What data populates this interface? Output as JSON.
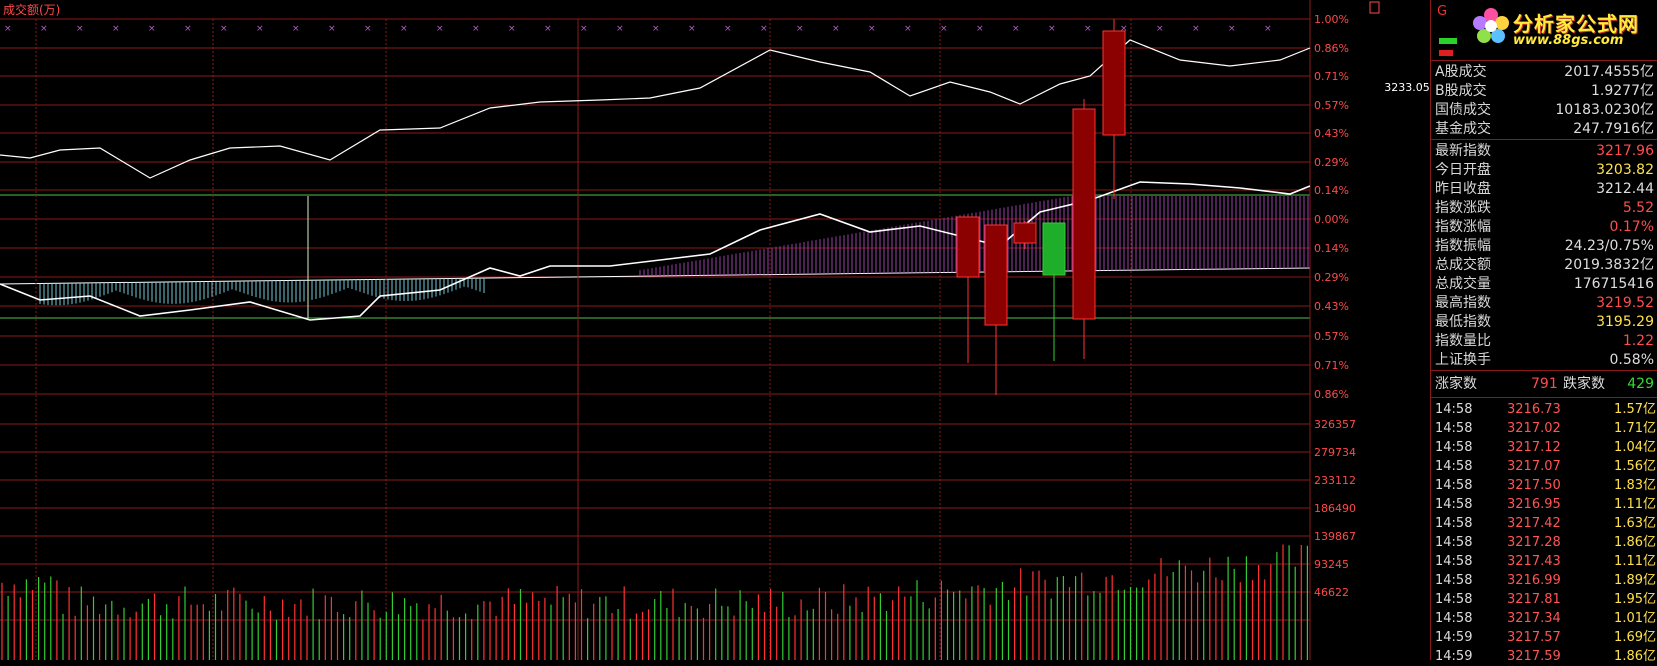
{
  "chart": {
    "title": "成交额(万)",
    "top_axis_ticks": [
      "1.00%",
      "0.86%",
      "0.71%",
      "0.57%",
      "0.43%",
      "0.29%",
      "0.14%",
      "0.00%",
      "0.14%",
      "0.29%",
      "0.43%",
      "0.57%",
      "0.71%",
      "0.86%"
    ],
    "price_badge": "3233.05",
    "volume_axis_ticks": [
      "326357",
      "279734",
      "233112",
      "186490",
      "139867",
      "93245",
      "46622"
    ],
    "colors": {
      "grid": "#8b1a1a",
      "up": "#ff3333",
      "down": "#33cc33",
      "line": "#ffffff",
      "axis_text": "#ff4a4a",
      "candle_up_fill": "#8b0000",
      "candle_down_fill": "#1fae2a"
    }
  },
  "chart_data": {
    "type": "line",
    "title": "成交额(万)",
    "price_axis_percent": [
      1.0,
      0.86,
      0.71,
      0.57,
      0.43,
      0.29,
      0.14,
      0.0,
      -0.14,
      -0.29,
      -0.43,
      -0.57,
      -0.71,
      -0.86
    ],
    "volume_axis": [
      326357,
      279734,
      233112,
      186490,
      139867,
      93245,
      46622
    ],
    "candles": [
      {
        "open": -0.29,
        "close": 0.01,
        "high": 0.02,
        "low": -0.72,
        "dir": "up"
      },
      {
        "open": -0.53,
        "close": -0.03,
        "high": -0.02,
        "low": -0.88,
        "dir": "up"
      },
      {
        "open": -0.12,
        "close": -0.02,
        "high": -0.01,
        "low": -0.15,
        "dir": "up"
      },
      {
        "open": -0.02,
        "close": -0.28,
        "high": -0.02,
        "low": -0.71,
        "dir": "down"
      },
      {
        "open": -0.5,
        "close": 0.55,
        "high": 0.6,
        "low": -0.7,
        "dir": "up"
      },
      {
        "open": 0.42,
        "close": 0.94,
        "high": 1.0,
        "low": 0.1,
        "dir": "up"
      }
    ]
  },
  "panel": {
    "g_letter": "G",
    "logo_title": "分析家公式网",
    "logo_url": "www.88gs.com",
    "stats_top": [
      {
        "label": "A股成交",
        "value": "2017.4555亿",
        "color": "#dddddd"
      },
      {
        "label": "B股成交",
        "value": "1.9277亿",
        "color": "#dddddd"
      },
      {
        "label": "国债成交",
        "value": "10183.0230亿",
        "color": "#dddddd"
      },
      {
        "label": "基金成交",
        "value": "247.7916亿",
        "color": "#dddddd"
      }
    ],
    "stats": [
      {
        "label": "最新指数",
        "value": "3217.96",
        "color": "#ff4d4d"
      },
      {
        "label": "今日开盘",
        "value": "3203.82",
        "color": "#ffe14d"
      },
      {
        "label": "昨日收盘",
        "value": "3212.44",
        "color": "#dddddd"
      },
      {
        "label": "指数涨跌",
        "value": "5.52",
        "color": "#ff4d4d"
      },
      {
        "label": "指数涨幅",
        "value": "0.17%",
        "color": "#ff4d4d"
      },
      {
        "label": "指数振幅",
        "value": "24.23/0.75%",
        "color": "#dddddd"
      },
      {
        "label": "总成交额",
        "value": "2019.3832亿",
        "color": "#dddddd"
      },
      {
        "label": "总成交量",
        "value": "176715416",
        "color": "#dddddd"
      },
      {
        "label": "最高指数",
        "value": "3219.52",
        "color": "#ff4d4d"
      },
      {
        "label": "最低指数",
        "value": "3195.29",
        "color": "#ffe14d"
      },
      {
        "label": "指数量比",
        "value": "1.22",
        "color": "#ff4d4d"
      },
      {
        "label": "上证换手",
        "value": "0.58%",
        "color": "#dddddd"
      }
    ],
    "updown": {
      "up_label": "涨家数",
      "up_count": "791",
      "down_label": "跌家数",
      "down_count": "429"
    },
    "trades": [
      {
        "time": "14:58",
        "price": "3216.73",
        "amount": "1.57亿"
      },
      {
        "time": "14:58",
        "price": "3217.02",
        "amount": "1.71亿"
      },
      {
        "time": "14:58",
        "price": "3217.12",
        "amount": "1.04亿"
      },
      {
        "time": "14:58",
        "price": "3217.07",
        "amount": "1.56亿"
      },
      {
        "time": "14:58",
        "price": "3217.50",
        "amount": "1.83亿"
      },
      {
        "time": "14:58",
        "price": "3216.95",
        "amount": "1.11亿"
      },
      {
        "time": "14:58",
        "price": "3217.42",
        "amount": "1.63亿"
      },
      {
        "time": "14:58",
        "price": "3217.28",
        "amount": "1.86亿"
      },
      {
        "time": "14:58",
        "price": "3217.43",
        "amount": "1.11亿"
      },
      {
        "time": "14:58",
        "price": "3216.99",
        "amount": "1.89亿"
      },
      {
        "time": "14:58",
        "price": "3217.81",
        "amount": "1.95亿"
      },
      {
        "time": "14:58",
        "price": "3217.34",
        "amount": "1.01亿"
      },
      {
        "time": "14:59",
        "price": "3217.57",
        "amount": "1.69亿"
      },
      {
        "time": "14:59",
        "price": "3217.59",
        "amount": "1.86亿"
      }
    ]
  }
}
